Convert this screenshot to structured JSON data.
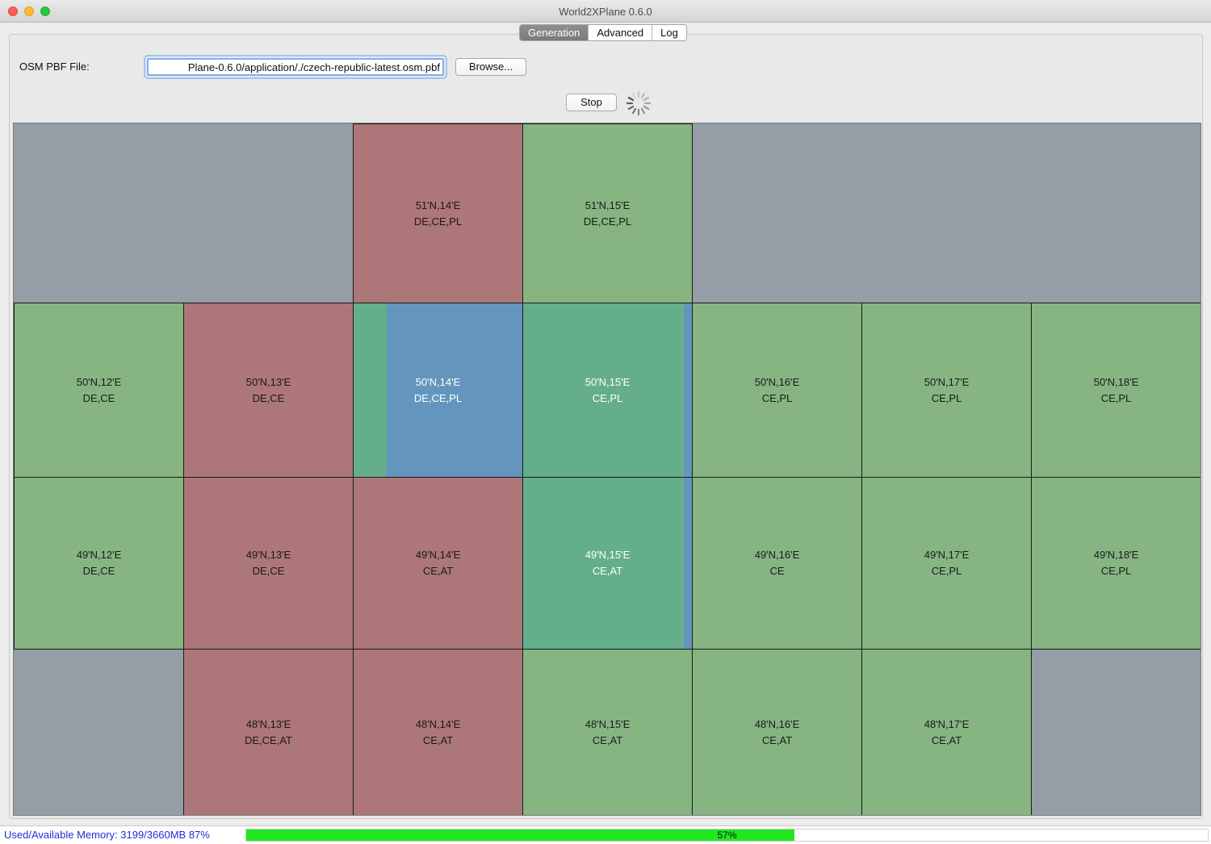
{
  "window": {
    "title": "World2XPlane 0.6.0"
  },
  "tabs": [
    {
      "label": "Generation",
      "active": true
    },
    {
      "label": "Advanced",
      "active": false
    },
    {
      "label": "Log",
      "active": false
    }
  ],
  "osm": {
    "label": "OSM PBF File:",
    "value": "Plane-0.6.0/application/./czech-republic-latest.osm.pbf",
    "browse_label": "Browse..."
  },
  "controls": {
    "stop_label": "Stop",
    "spinner_icon": "loading-spinner-icon"
  },
  "colors": {
    "red": "#ad7678",
    "green": "#86b582",
    "active": "#65ae8c",
    "processing": "#6496bd",
    "empty": "#959da6",
    "progress": "#1fe81f",
    "memory_text": "#1d2fd6"
  },
  "tiles": [
    {
      "id": "51N14E",
      "line1": "51'N,14'E",
      "line2": "DE,CE,PL",
      "state": "red"
    },
    {
      "id": "51N15E",
      "line1": "51'N,15'E",
      "line2": "DE,CE,PL",
      "state": "green"
    },
    {
      "id": "50N12E",
      "line1": "50'N,12'E",
      "line2": "DE,CE",
      "state": "green"
    },
    {
      "id": "50N13E",
      "line1": "50'N,13'E",
      "line2": "DE,CE",
      "state": "red"
    },
    {
      "id": "50N14E",
      "line1": "50'N,14'E",
      "line2": "DE,CE,PL",
      "state": "processing"
    },
    {
      "id": "50N15E",
      "line1": "50'N,15'E",
      "line2": "CE,PL",
      "state": "active"
    },
    {
      "id": "50N16E",
      "line1": "50'N,16'E",
      "line2": "CE,PL",
      "state": "green"
    },
    {
      "id": "50N17E",
      "line1": "50'N,17'E",
      "line2": "CE,PL",
      "state": "green"
    },
    {
      "id": "50N18E",
      "line1": "50'N,18'E",
      "line2": "CE,PL",
      "state": "green"
    },
    {
      "id": "49N12E",
      "line1": "49'N,12'E",
      "line2": "DE,CE",
      "state": "green"
    },
    {
      "id": "49N13E",
      "line1": "49'N,13'E",
      "line2": "DE,CE",
      "state": "red"
    },
    {
      "id": "49N14E",
      "line1": "49'N,14'E",
      "line2": "CE,AT",
      "state": "red"
    },
    {
      "id": "49N15E",
      "line1": "49'N,15'E",
      "line2": "CE,AT",
      "state": "active"
    },
    {
      "id": "49N16E",
      "line1": "49'N,16'E",
      "line2": "CE",
      "state": "green"
    },
    {
      "id": "49N17E",
      "line1": "49'N,17'E",
      "line2": "CE,PL",
      "state": "green"
    },
    {
      "id": "49N18E",
      "line1": "49'N,18'E",
      "line2": "CE,PL",
      "state": "green"
    },
    {
      "id": "48N13E",
      "line1": "48'N,13'E",
      "line2": "DE,CE,AT",
      "state": "red"
    },
    {
      "id": "48N14E",
      "line1": "48'N,14'E",
      "line2": "CE,AT",
      "state": "red"
    },
    {
      "id": "48N15E",
      "line1": "48'N,15'E",
      "line2": "CE,AT",
      "state": "green"
    },
    {
      "id": "48N16E",
      "line1": "48'N,16'E",
      "line2": "CE,AT",
      "state": "green"
    },
    {
      "id": "48N17E",
      "line1": "48'N,17'E",
      "line2": "CE,AT",
      "state": "green"
    }
  ],
  "status": {
    "memory_text": "Used/Available Memory: 3199/3660MB 87%",
    "progress_text": "57%",
    "progress_value": 0.57
  }
}
